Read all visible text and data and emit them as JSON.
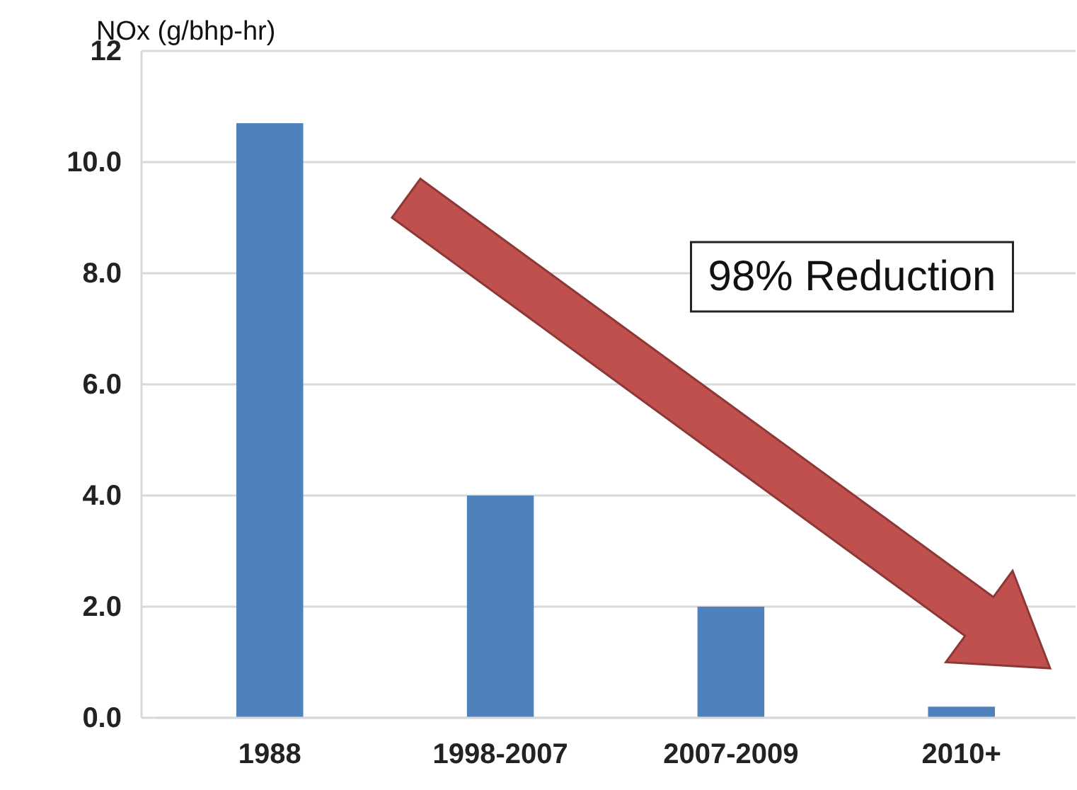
{
  "chart_data": {
    "type": "bar",
    "ylabel": "NOx (g/bhp-hr)",
    "categories": [
      "1988",
      "1998-2007",
      "2007-2009",
      "2010+"
    ],
    "values": [
      10.7,
      4.0,
      2.0,
      0.2
    ],
    "color": "#4f81bd",
    "ylim": [
      0,
      12
    ],
    "yticks": [
      {
        "value": 0,
        "label": "0.0"
      },
      {
        "value": 2,
        "label": "2.0"
      },
      {
        "value": 4,
        "label": "4.0"
      },
      {
        "value": 6,
        "label": "6.0"
      },
      {
        "value": 8,
        "label": "8.0"
      },
      {
        "value": 10,
        "label": "10.0"
      },
      12
    ],
    "grid": "y",
    "annotations": [
      "98% Reduction"
    ]
  }
}
